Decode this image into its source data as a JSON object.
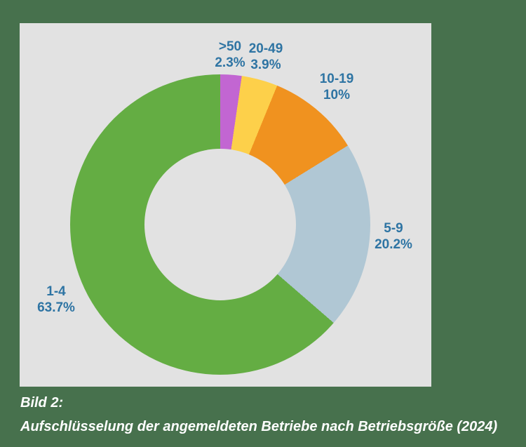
{
  "page": {
    "background_color": "#47714d"
  },
  "figure": {
    "background_color": "#e2e2e2"
  },
  "caption": {
    "line1": "Bild 2:",
    "line2": "Aufschlüsselung der angemeldeten Betriebe nach Betriebsgröße (2024)",
    "color": "#ffffff"
  },
  "chart_data": {
    "type": "pie",
    "subtype": "donut",
    "title": "",
    "legend_position": "none",
    "start_angle_deg": 0,
    "direction": "clockwise",
    "inner_radius_ratio": 0.5,
    "label_color": "#2e74a3",
    "categories": [
      ">50",
      "20-49",
      "10-19",
      "5-9",
      "1-4"
    ],
    "values": [
      2.3,
      3.9,
      10,
      20.2,
      63.7
    ],
    "segments": [
      {
        "label": ">50",
        "value_pct": 2.3,
        "display": "2.3%",
        "color": "#c266d2"
      },
      {
        "label": "20-49",
        "value_pct": 3.9,
        "display": "3.9%",
        "color": "#fdd04a"
      },
      {
        "label": "10-19",
        "value_pct": 10,
        "display": "10%",
        "color": "#f0921f"
      },
      {
        "label": "5-9",
        "value_pct": 20.2,
        "display": "20.2%",
        "color": "#b0c7d4"
      },
      {
        "label": "1-4",
        "value_pct": 63.7,
        "display": "63.7%",
        "color": "#64ad43"
      }
    ]
  }
}
